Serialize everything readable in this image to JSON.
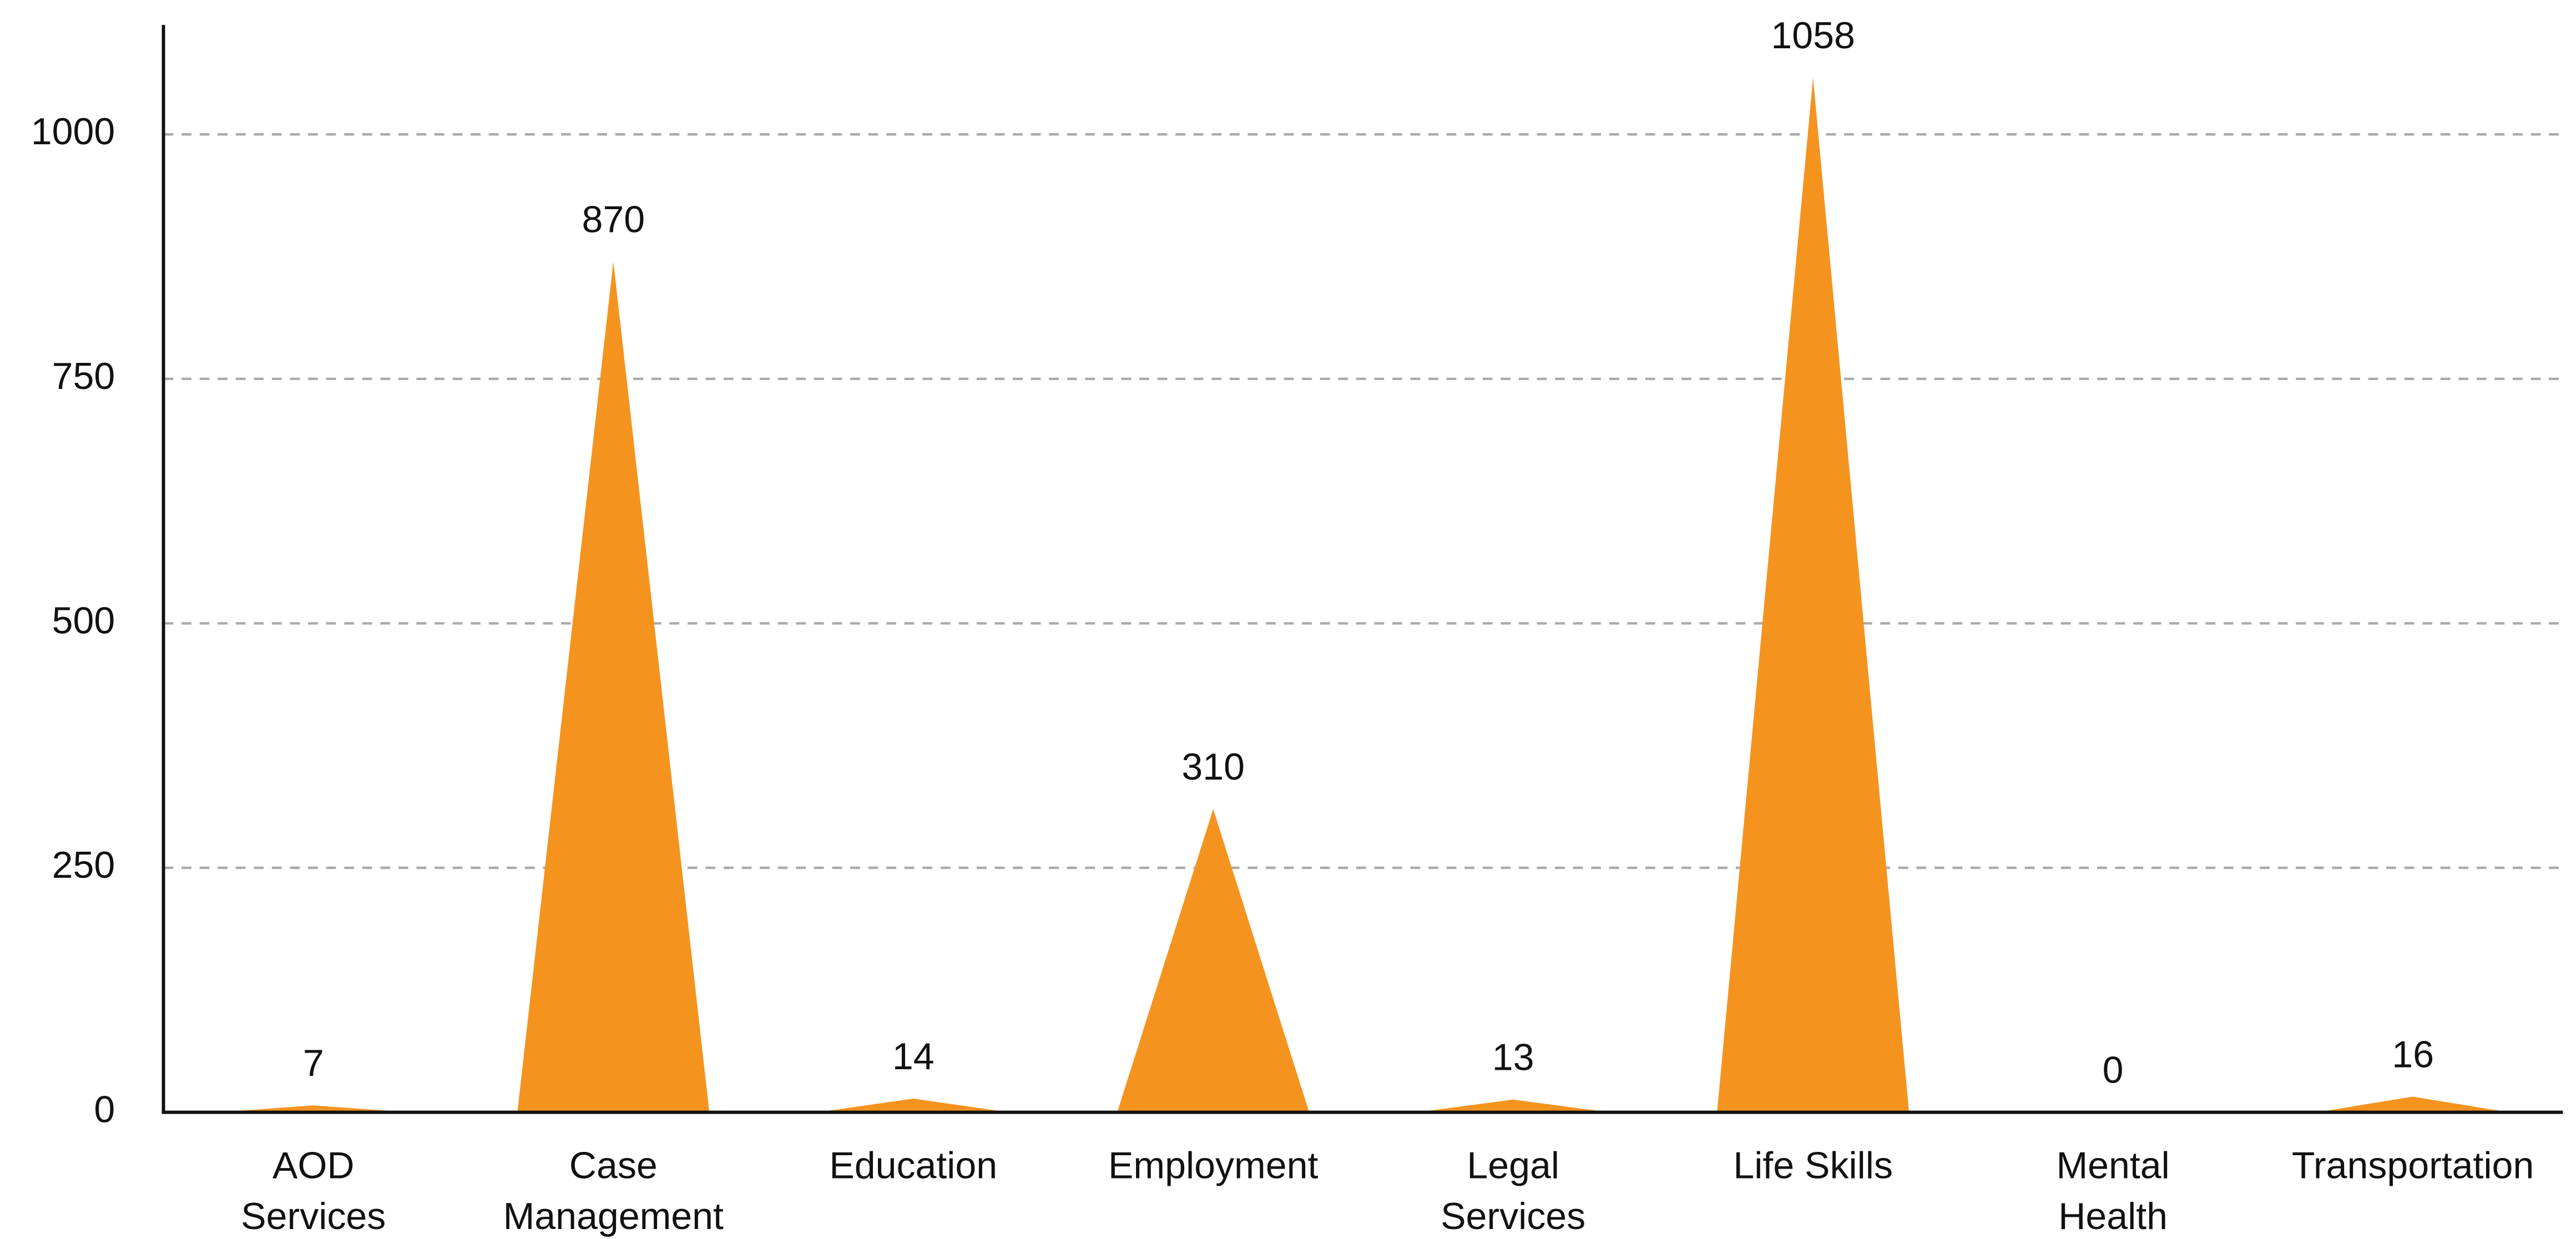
{
  "chart_data": {
    "type": "peak",
    "categories": [
      [
        "AOD",
        "Services"
      ],
      [
        "Case",
        "Management"
      ],
      [
        "Education"
      ],
      [
        "Employment"
      ],
      [
        "Legal",
        "Services"
      ],
      [
        "Life Skills"
      ],
      [
        "Mental",
        "Health"
      ],
      [
        "Transportation"
      ]
    ],
    "values": [
      7,
      870,
      14,
      310,
      13,
      1058,
      0,
      16
    ],
    "color": "#f5931f",
    "ylim": [
      0,
      1112
    ],
    "yticks": [
      0,
      250,
      500,
      750,
      1000
    ],
    "grid": true
  }
}
